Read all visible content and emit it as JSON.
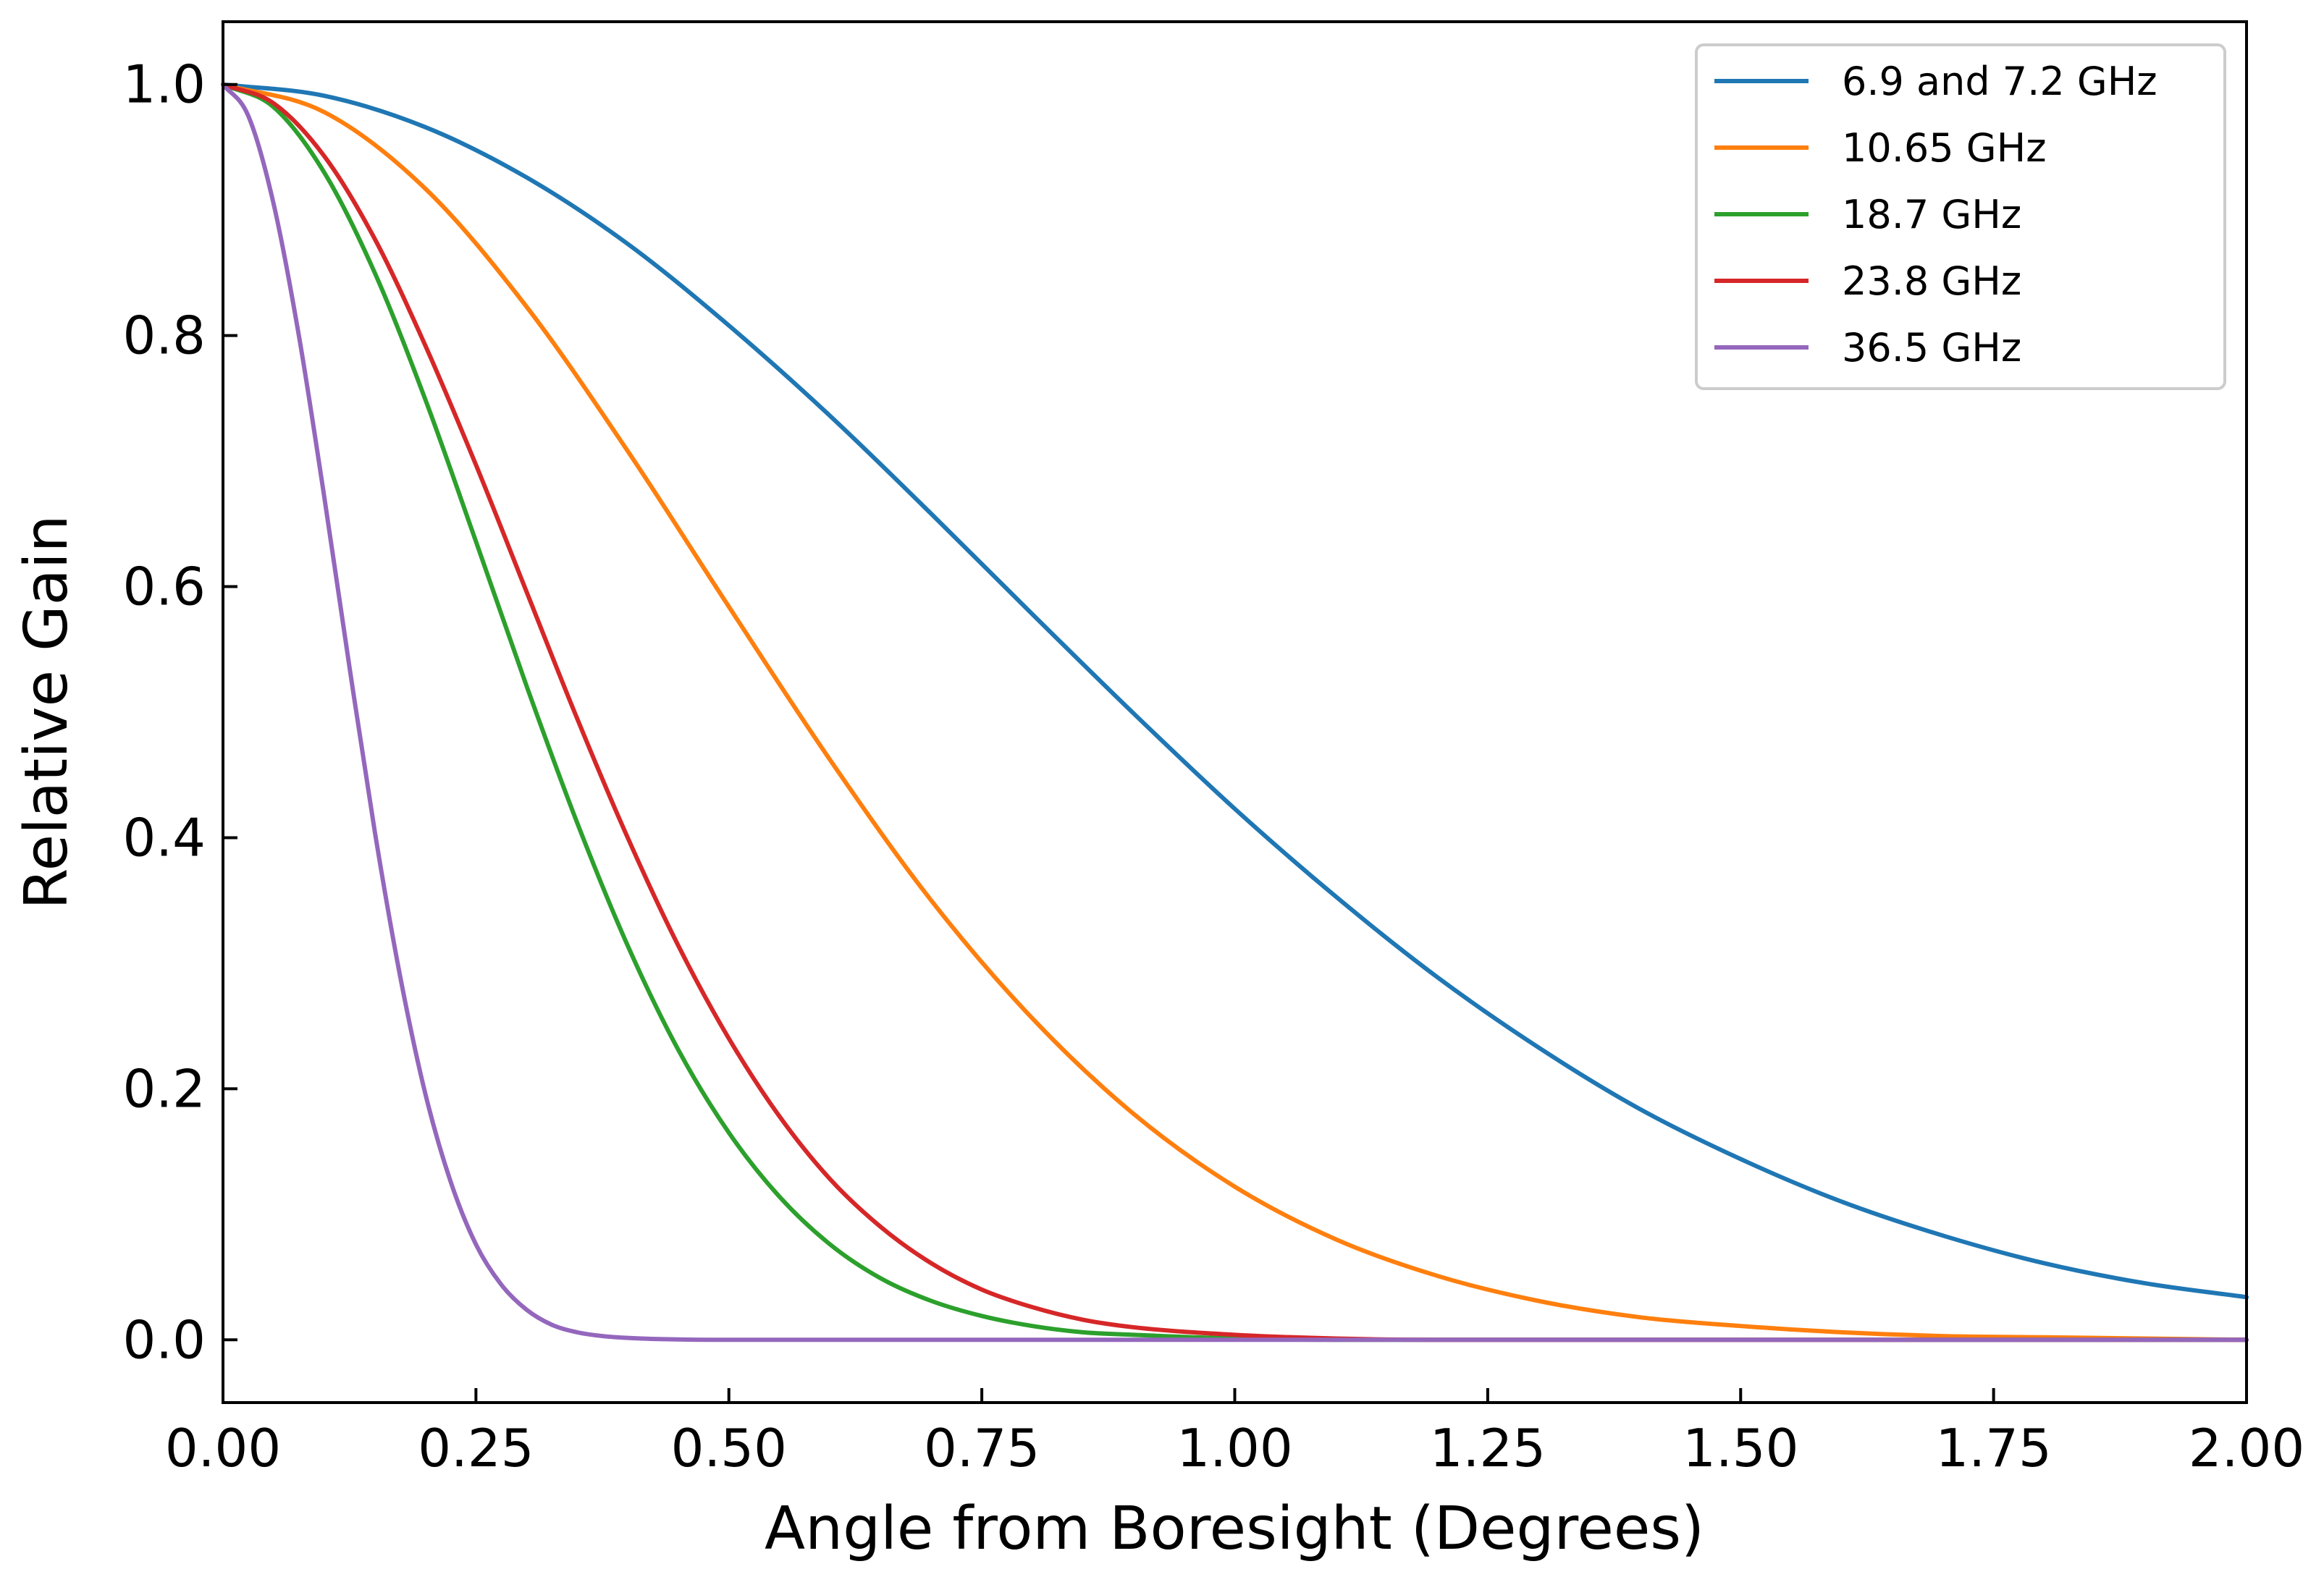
{
  "chart_data": {
    "type": "line",
    "title": "",
    "xlabel": "Angle from Boresight (Degrees)",
    "ylabel": "Relative Gain",
    "xlim": [
      0.0,
      2.0
    ],
    "ylim": [
      -0.05,
      1.05
    ],
    "xticks": [
      0.0,
      0.25,
      0.5,
      0.75,
      1.0,
      1.25,
      1.5,
      1.75,
      2.0
    ],
    "xtick_labels": [
      "0.00",
      "0.25",
      "0.50",
      "0.75",
      "1.00",
      "1.25",
      "1.50",
      "1.75",
      "2.00"
    ],
    "yticks": [
      0.0,
      0.2,
      0.4,
      0.6,
      0.8,
      1.0
    ],
    "ytick_labels": [
      "0.0",
      "0.2",
      "0.4",
      "0.6",
      "0.8",
      "1.0"
    ],
    "grid": false,
    "legend_position": "top-right",
    "series": [
      {
        "name": "6.9 and 7.2 GHz",
        "color": "#1f77b4",
        "x": [
          0.0,
          0.1,
          0.2,
          0.3,
          0.4,
          0.5,
          0.6,
          0.7,
          0.8,
          0.9,
          1.0,
          1.1,
          1.2,
          1.3,
          1.4,
          1.5,
          1.6,
          1.7,
          1.8,
          1.9,
          2.0
        ],
        "y": [
          1.0,
          0.991,
          0.966,
          0.926,
          0.873,
          0.808,
          0.736,
          0.658,
          0.578,
          0.499,
          0.423,
          0.353,
          0.289,
          0.233,
          0.184,
          0.144,
          0.11,
          0.083,
          0.061,
          0.045,
          0.034
        ]
      },
      {
        "name": "10.65 GHz",
        "color": "#ff7f0e",
        "x": [
          0.0,
          0.1,
          0.2,
          0.3,
          0.4,
          0.5,
          0.6,
          0.7,
          0.8,
          0.9,
          1.0,
          1.1,
          1.2,
          1.3,
          1.4,
          1.5,
          1.6,
          1.7,
          1.8,
          1.9,
          2.0
        ],
        "y": [
          1.0,
          0.978,
          0.917,
          0.823,
          0.708,
          0.584,
          0.462,
          0.35,
          0.256,
          0.18,
          0.122,
          0.08,
          0.051,
          0.031,
          0.018,
          0.011,
          0.006,
          0.003,
          0.002,
          0.001,
          0.0
        ]
      },
      {
        "name": "18.7 GHz",
        "color": "#2ca02c",
        "x": [
          0.0,
          0.05,
          0.1,
          0.15,
          0.2,
          0.25,
          0.3,
          0.35,
          0.4,
          0.45,
          0.5,
          0.55,
          0.6,
          0.65,
          0.7,
          0.75,
          0.8,
          0.85,
          0.9,
          1.0,
          1.1,
          1.2,
          1.4,
          1.6,
          2.0
        ],
        "y": [
          1.0,
          0.982,
          0.93,
          0.85,
          0.749,
          0.636,
          0.521,
          0.412,
          0.314,
          0.231,
          0.165,
          0.114,
          0.076,
          0.049,
          0.031,
          0.019,
          0.011,
          0.006,
          0.004,
          0.001,
          0.0,
          0.0,
          0.0,
          0.0,
          0.0
        ]
      },
      {
        "name": "23.8 GHz",
        "color": "#d62728",
        "x": [
          0.0,
          0.05,
          0.1,
          0.15,
          0.2,
          0.25,
          0.3,
          0.35,
          0.4,
          0.45,
          0.5,
          0.55,
          0.6,
          0.65,
          0.7,
          0.75,
          0.8,
          0.85,
          0.9,
          1.0,
          1.1,
          1.2,
          1.4,
          1.6,
          2.0
        ],
        "y": [
          1.0,
          0.985,
          0.943,
          0.877,
          0.792,
          0.697,
          0.596,
          0.495,
          0.4,
          0.314,
          0.24,
          0.178,
          0.128,
          0.09,
          0.061,
          0.04,
          0.026,
          0.016,
          0.01,
          0.004,
          0.001,
          0.0,
          0.0,
          0.0,
          0.0
        ]
      },
      {
        "name": "36.5 GHz",
        "color": "#9467bd",
        "x": [
          0.0,
          0.025,
          0.05,
          0.075,
          0.1,
          0.125,
          0.15,
          0.175,
          0.2,
          0.225,
          0.25,
          0.275,
          0.3,
          0.325,
          0.35,
          0.375,
          0.4,
          0.45,
          0.5,
          0.55,
          0.6,
          0.8,
          1.0,
          1.5,
          2.0
        ],
        "y": [
          1.0,
          0.975,
          0.905,
          0.8,
          0.672,
          0.536,
          0.405,
          0.29,
          0.196,
          0.126,
          0.076,
          0.044,
          0.024,
          0.012,
          0.006,
          0.003,
          0.0015,
          0.0003,
          0.0,
          0.0,
          0.0,
          0.0,
          0.0,
          0.0,
          0.0
        ]
      }
    ]
  }
}
